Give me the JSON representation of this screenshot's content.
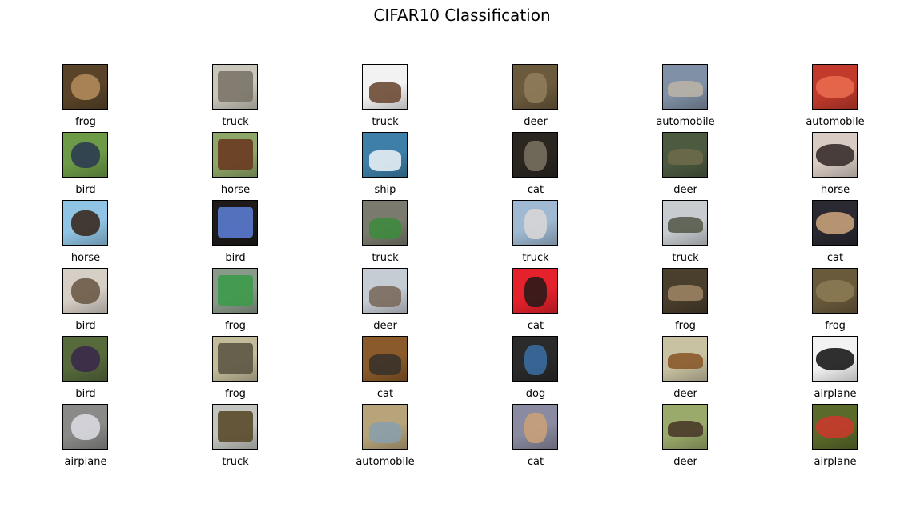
{
  "title": "CIFAR10 Classification",
  "images": [
    {
      "label": "frog",
      "bg": "#5a4429",
      "accent": "#b08a5a"
    },
    {
      "label": "truck",
      "bg": "#c9c6bb",
      "accent": "#7b7469"
    },
    {
      "label": "truck",
      "bg": "#f2f2f2",
      "accent": "#6b4a34"
    },
    {
      "label": "deer",
      "bg": "#6b5a3c",
      "accent": "#8e7b5a"
    },
    {
      "label": "automobile",
      "bg": "#8090a6",
      "accent": "#b8b2a6"
    },
    {
      "label": "automobile",
      "bg": "#c23a2c",
      "accent": "#e86a4e"
    },
    {
      "label": "bird",
      "bg": "#6c9a46",
      "accent": "#2d3b52"
    },
    {
      "label": "horse",
      "bg": "#8ea667",
      "accent": "#6a3a22"
    },
    {
      "label": "ship",
      "bg": "#3d7fa8",
      "accent": "#e6eef4"
    },
    {
      "label": "cat",
      "bg": "#2b2620",
      "accent": "#77705f"
    },
    {
      "label": "deer",
      "bg": "#4c5a40",
      "accent": "#6d6a4a"
    },
    {
      "label": "horse",
      "bg": "#d8cbc4",
      "accent": "#3a2e2e"
    },
    {
      "label": "horse",
      "bg": "#8fc4e4",
      "accent": "#3a2a20"
    },
    {
      "label": "bird",
      "bg": "#1e1a1a",
      "accent": "#5a7bd0"
    },
    {
      "label": "truck",
      "bg": "#7a7a6e",
      "accent": "#3f8a3f"
    },
    {
      "label": "truck",
      "bg": "#9fb9d2",
      "accent": "#d6d6d6"
    },
    {
      "label": "truck",
      "bg": "#c8ccd0",
      "accent": "#585b4d"
    },
    {
      "label": "cat",
      "bg": "#2a2830",
      "accent": "#c5a07a"
    },
    {
      "label": "bird",
      "bg": "#d6cfc6",
      "accent": "#6b5a46"
    },
    {
      "label": "frog",
      "bg": "#8a9a8a",
      "accent": "#3c9a4a"
    },
    {
      "label": "deer",
      "bg": "#c6ccd4",
      "accent": "#7a6a5c"
    },
    {
      "label": "cat",
      "bg": "#e5212b",
      "accent": "#2b1a1a"
    },
    {
      "label": "frog",
      "bg": "#4a3e2c",
      "accent": "#9a8262"
    },
    {
      "label": "frog",
      "bg": "#6a5a3c",
      "accent": "#8b7a52"
    },
    {
      "label": "bird",
      "bg": "#566a3c",
      "accent": "#3a2a4a"
    },
    {
      "label": "frog",
      "bg": "#c2bc9a",
      "accent": "#5c5644"
    },
    {
      "label": "cat",
      "bg": "#8a5a2a",
      "accent": "#3a322a"
    },
    {
      "label": "dog",
      "bg": "#2a2a2a",
      "accent": "#3a6aa0"
    },
    {
      "label": "deer",
      "bg": "#c8c2a2",
      "accent": "#8a5a2a"
    },
    {
      "label": "airplane",
      "bg": "#f2f2f2",
      "accent": "#1a1a1a"
    },
    {
      "label": "airplane",
      "bg": "#8a8a88",
      "accent": "#d8d8e0"
    },
    {
      "label": "truck",
      "bg": "#c2c4c0",
      "accent": "#5a4a2a"
    },
    {
      "label": "automobile",
      "bg": "#b8a47a",
      "accent": "#8aa0aa"
    },
    {
      "label": "cat",
      "bg": "#8a8aa0",
      "accent": "#c8a078"
    },
    {
      "label": "deer",
      "bg": "#9aaa6a",
      "accent": "#4a3a2a"
    },
    {
      "label": "airplane",
      "bg": "#5a6a2a",
      "accent": "#c83a2a"
    }
  ]
}
